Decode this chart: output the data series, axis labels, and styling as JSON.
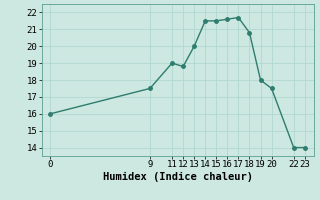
{
  "x": [
    0,
    9,
    11,
    12,
    13,
    14,
    15,
    16,
    17,
    18,
    19,
    20,
    22,
    23
  ],
  "y": [
    16.0,
    17.5,
    19.0,
    18.8,
    20.0,
    21.5,
    21.5,
    21.6,
    21.7,
    20.8,
    18.0,
    17.5,
    14.0,
    14.0
  ],
  "line_color": "#2e7d6e",
  "marker_color": "#2e7d6e",
  "bg_color": "#cce8e0",
  "grid_color": "#b0d8d0",
  "xlabel": "Humidex (Indice chaleur)",
  "xlabel_fontsize": 7.5,
  "xticks": [
    0,
    9,
    11,
    12,
    13,
    14,
    15,
    16,
    17,
    18,
    19,
    20,
    22,
    23
  ],
  "yticks": [
    14,
    15,
    16,
    17,
    18,
    19,
    20,
    21,
    22
  ],
  "xlim": [
    -0.8,
    23.8
  ],
  "ylim": [
    13.5,
    22.5
  ],
  "tick_fontsize": 6.5,
  "linewidth": 1.0,
  "markersize": 2.5
}
